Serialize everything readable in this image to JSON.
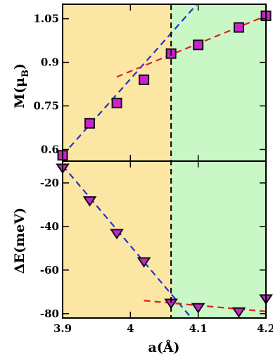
{
  "chart_data": [
    {
      "type": "scatter",
      "panel": "top",
      "ylabel_main": "M(μ",
      "ylabel_sub": "B",
      "ylabel_close": ")",
      "xlim": [
        3.9,
        4.2
      ],
      "ylim": [
        0.56,
        1.1
      ],
      "yticks": [
        0.6,
        0.75,
        0.9,
        1.05
      ],
      "ytick_labels": [
        "0.6",
        "0.75",
        "0.9",
        "1.05"
      ],
      "series": [
        {
          "marker": "square",
          "x": [
            3.9,
            3.94,
            3.98,
            4.02,
            4.06,
            4.1,
            4.16,
            4.2
          ],
          "y": [
            0.58,
            0.69,
            0.76,
            0.84,
            0.93,
            0.96,
            1.02,
            1.06
          ]
        }
      ],
      "fit_lines": [
        {
          "color": "#2233cc",
          "x": [
            3.9,
            4.1
          ],
          "y": [
            0.58,
            1.105
          ]
        },
        {
          "color": "#e02020",
          "x": [
            3.98,
            4.2
          ],
          "y": [
            0.85,
            1.06
          ]
        }
      ]
    },
    {
      "type": "scatter",
      "panel": "bottom",
      "ylabel": "ΔE(meV)",
      "xlabel": "a(Å)",
      "xlim": [
        3.9,
        4.2
      ],
      "ylim": [
        -82,
        -10
      ],
      "xticks": [
        3.9,
        4.0,
        4.1,
        4.2
      ],
      "xtick_labels": [
        "3.9",
        "4",
        "4.1",
        "4.2"
      ],
      "yticks": [
        -20,
        -40,
        -60,
        -80
      ],
      "ytick_labels": [
        "-20",
        "-40",
        "-60",
        "-80"
      ],
      "series": [
        {
          "marker": "triangle-down",
          "x": [
            3.9,
            3.94,
            3.98,
            4.02,
            4.06,
            4.1,
            4.16,
            4.2
          ],
          "y": [
            -13,
            -28,
            -43,
            -56,
            -75,
            -77,
            -79,
            -73
          ]
        }
      ],
      "fit_lines": [
        {
          "color": "#2233cc",
          "x": [
            3.9,
            4.09
          ],
          "y": [
            -12,
            -82
          ]
        },
        {
          "color": "#e02020",
          "x": [
            4.02,
            4.2
          ],
          "y": [
            -74,
            -79
          ]
        }
      ]
    }
  ],
  "shared": {
    "boundary_x": 4.06,
    "boundary_color": "#000000",
    "region_left_color": "#fbe6a4",
    "region_right_color": "#c9f7c6",
    "marker_fill": "#cc22cc",
    "marker_stroke": "#111111"
  }
}
